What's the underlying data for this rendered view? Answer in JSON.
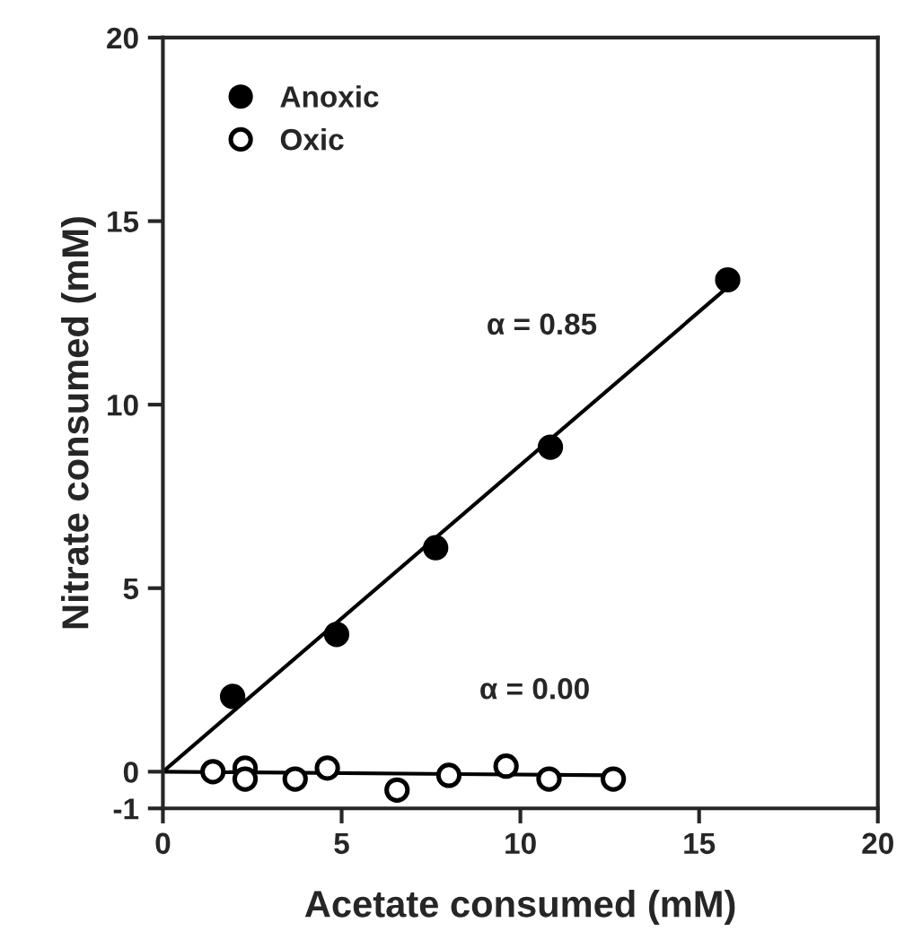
{
  "chart_data": {
    "type": "scatter",
    "xlabel": "Acetate consumed (mM)",
    "ylabel": "Nitrate consumed (mM)",
    "xlim": [
      0,
      20
    ],
    "xticks": [
      0,
      5,
      10,
      15,
      20
    ],
    "ylim": [
      -1,
      20
    ],
    "yticks": [
      -1,
      0,
      5,
      10,
      15,
      20
    ],
    "legend": "top left",
    "grid": false,
    "series": [
      {
        "name": "Anoxic",
        "marker": "circle",
        "color": "#000000",
        "x": [
          1.95,
          4.86,
          7.63,
          10.84,
          15.8
        ],
        "values": [
          2.05,
          3.74,
          6.1,
          8.84,
          13.4
        ]
      },
      {
        "name": "Oxic",
        "marker": "circle",
        "color": "#000000",
        "x": [
          1.4,
          2.3,
          2.3,
          3.7,
          4.6,
          6.55,
          8.0,
          9.6,
          10.8,
          12.6
        ],
        "values": [
          0.0,
          0.1,
          -0.2,
          -0.2,
          0.1,
          -0.5,
          -0.1,
          0.15,
          -0.2,
          -0.2
        ]
      },
      {
        "type": "line",
        "color": "#000000",
        "x": [
          0,
          15.8
        ],
        "values": [
          0,
          13.2
        ]
      },
      {
        "type": "line",
        "color": "#000000",
        "x": [
          0,
          12.6
        ],
        "values": [
          0,
          -0.1
        ]
      }
    ],
    "annotations": [
      "α = 0.85",
      "α = 0.00"
    ]
  }
}
